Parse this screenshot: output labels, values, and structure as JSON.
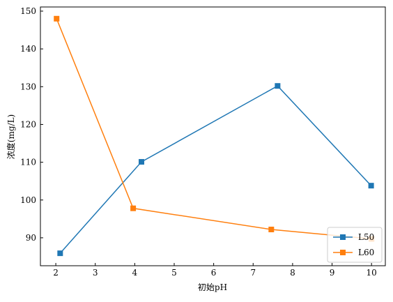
{
  "chart_data": {
    "type": "line",
    "x_label": "初始pH",
    "y_label": "浓度(mg/L)",
    "xlim": [
      1.61,
      10.35
    ],
    "ylim": [
      82.6,
      151.1
    ],
    "xticks": [
      2,
      3,
      4,
      5,
      6,
      7,
      8,
      9,
      10
    ],
    "yticks": [
      90,
      100,
      110,
      120,
      130,
      140,
      150
    ],
    "legend": "lower right",
    "series": [
      {
        "name": "L50",
        "color": "#1f77b4",
        "x": [
          2.11,
          4.17,
          7.62,
          9.99
        ],
        "values": [
          85.9,
          110.1,
          130.2,
          103.8
        ]
      },
      {
        "name": "L60",
        "color": "#ff7f0e",
        "x": [
          2.02,
          3.96,
          7.46,
          10.0
        ],
        "values": [
          148.0,
          97.8,
          92.2,
          89.7
        ]
      }
    ]
  }
}
